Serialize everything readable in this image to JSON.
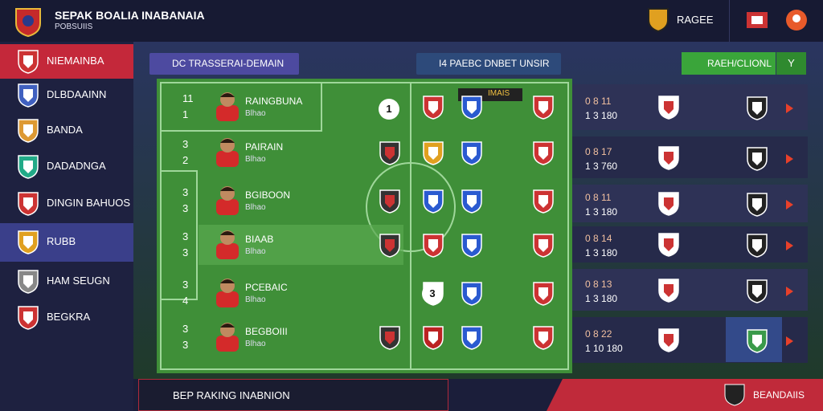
{
  "header": {
    "title": "SEPAK BOALIA INABANAIA",
    "subtitle": "POBSUIIS",
    "user": "RAGEE"
  },
  "sidebar": {
    "items": [
      "NIEMAINBA",
      "DLBDAAINN",
      "BANDA",
      "DADADNGA",
      "DINGIN BAHUOS",
      "RUBB",
      "HAM SEUGN",
      "BEGKRA"
    ]
  },
  "tabs": [
    "DC TRASSERAI-DEMAIN",
    "I4 PAEBC DNBET UNSIR"
  ],
  "actions": {
    "primary": "RAEH/CLIONL",
    "secondary": "Y"
  },
  "players": [
    {
      "number": "11",
      "position": "1",
      "name": "RAINGBUNA",
      "detail": "Blhao"
    },
    {
      "number": "3",
      "position": "2",
      "name": "PAIRAIN",
      "detail": "Blhao"
    },
    {
      "number": "3",
      "position": "3",
      "name": "BGIBOON",
      "detail": "Blhao"
    },
    {
      "number": "3",
      "position": "3",
      "name": "BIAAB",
      "detail": "Blhao"
    },
    {
      "number": "3",
      "position": "4",
      "name": "PCEBAIC",
      "detail": "Blhao"
    },
    {
      "number": "3",
      "position": "3",
      "name": "BEGBOIII",
      "detail": "Blhao"
    }
  ],
  "pitch": {
    "badge": "IMAIS",
    "markers": [
      "1",
      "3"
    ]
  },
  "fixtures": [
    {
      "top": "0 8 11",
      "bottom": "1 3 180"
    },
    {
      "top": "0 8 17",
      "bottom": "1 3 760"
    },
    {
      "top": "0 8 11",
      "bottom": "1 3 180"
    },
    {
      "top": "0 8 14",
      "bottom": "1 3 180"
    },
    {
      "top": "0 8 13",
      "bottom": "1 3 180"
    },
    {
      "top": "0 8 22",
      "bottom": "1 10 180"
    }
  ],
  "footer": {
    "left": "BEP RAKING INABNION",
    "right": "BEANDAIIS"
  }
}
